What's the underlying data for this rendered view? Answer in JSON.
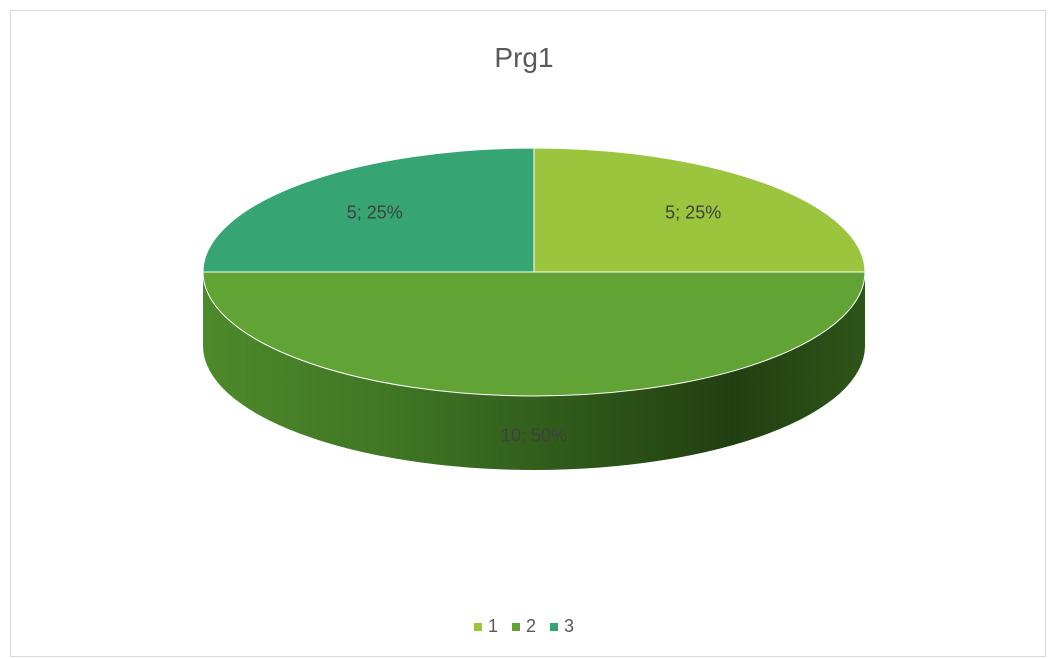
{
  "chart_data": {
    "type": "pie",
    "title": "Prg1",
    "style": "3d",
    "categories": [
      "1",
      "2",
      "3"
    ],
    "values": [
      5,
      10,
      5
    ],
    "percentages": [
      "25%",
      "50%",
      "25%"
    ],
    "data_labels": [
      "5; 25%",
      "10; 50%",
      "5; 25%"
    ],
    "colors": [
      "#9bc53d",
      "#62a336",
      "#36a573"
    ],
    "legend_position": "bottom"
  }
}
